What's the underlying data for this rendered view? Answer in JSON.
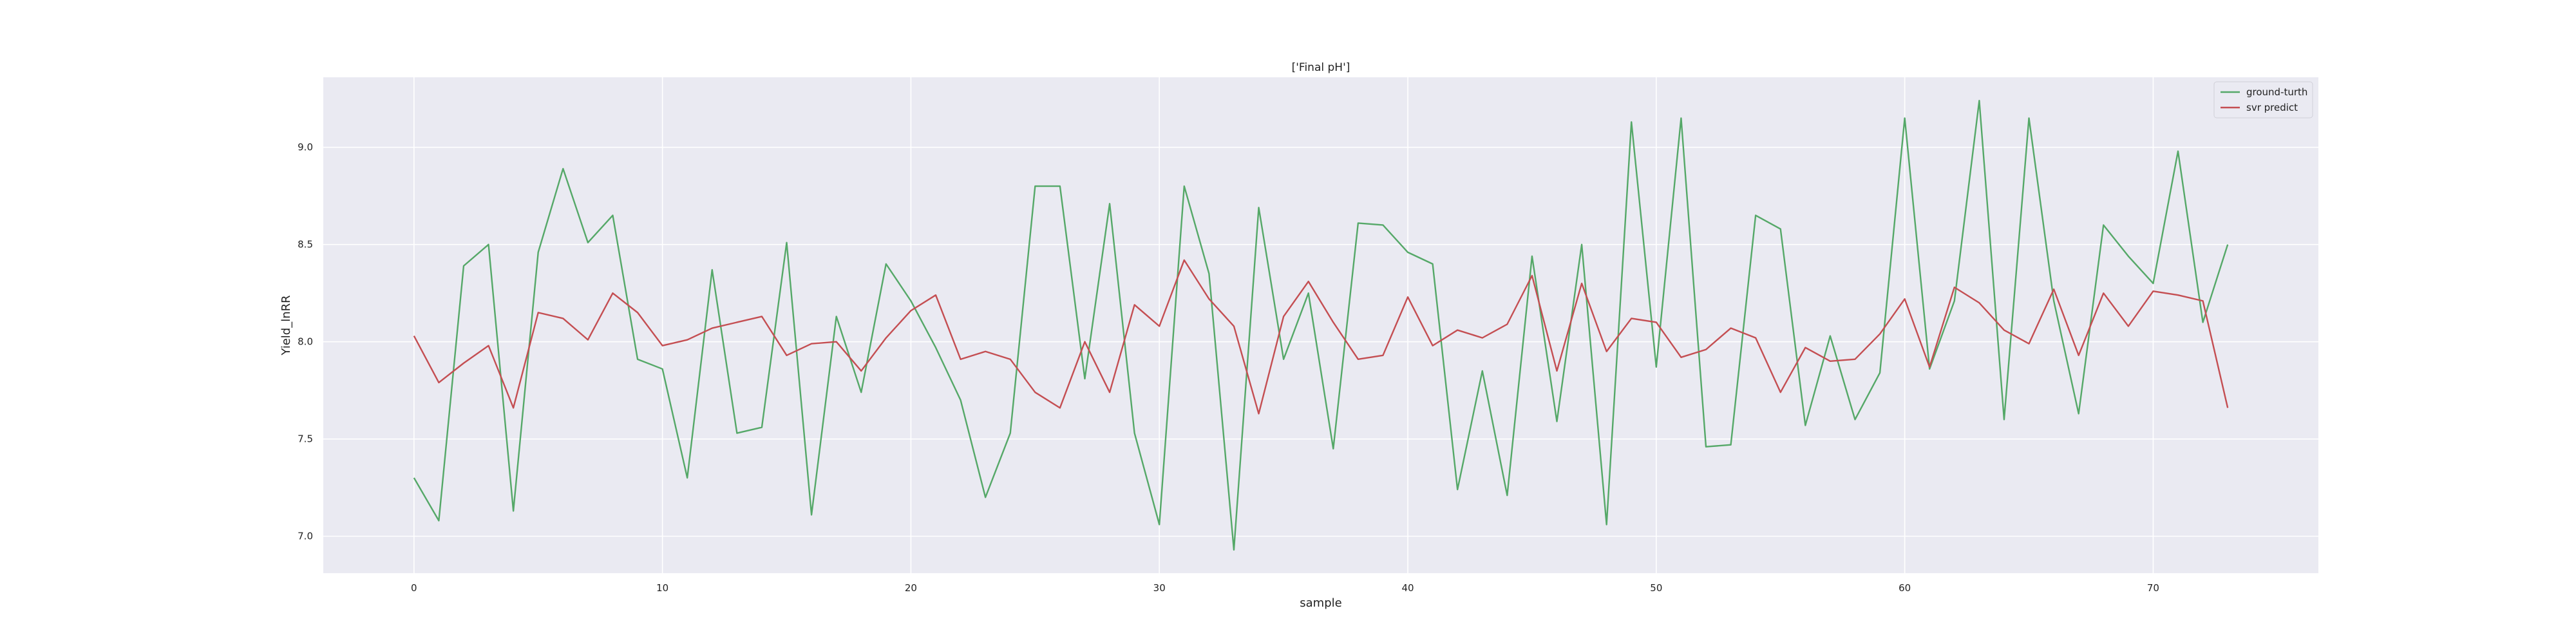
{
  "chart_data": {
    "type": "line",
    "title": "['Final pH']",
    "xlabel": "sample",
    "ylabel": "Yield_lnRR",
    "xlim": [
      -3.65,
      76.65
    ],
    "ylim": [
      6.81,
      9.36
    ],
    "xticks": [
      0,
      10,
      20,
      30,
      40,
      50,
      60,
      70
    ],
    "yticks": [
      7.0,
      7.5,
      8.0,
      8.5,
      9.0
    ],
    "ytick_labels": [
      "7.0",
      "7.5",
      "8.0",
      "8.5",
      "9.0"
    ],
    "grid": true,
    "legend_position": "top-right",
    "x": [
      0,
      1,
      2,
      3,
      4,
      5,
      6,
      7,
      8,
      9,
      10,
      11,
      12,
      13,
      14,
      15,
      16,
      17,
      18,
      19,
      20,
      21,
      22,
      23,
      24,
      25,
      26,
      27,
      28,
      29,
      30,
      31,
      32,
      33,
      34,
      35,
      36,
      37,
      38,
      39,
      40,
      41,
      42,
      43,
      44,
      45,
      46,
      47,
      48,
      49,
      50,
      51,
      52,
      53,
      54,
      55,
      56,
      57,
      58,
      59,
      60,
      61,
      62,
      63,
      64,
      65,
      66,
      67,
      68,
      69,
      70,
      71,
      72,
      73
    ],
    "series": [
      {
        "name": "ground-turth",
        "color": "#55a868",
        "values": [
          7.3,
          7.08,
          8.39,
          8.5,
          7.13,
          8.46,
          8.89,
          8.51,
          8.65,
          7.91,
          7.86,
          7.3,
          8.37,
          7.53,
          7.56,
          8.51,
          7.11,
          8.13,
          7.74,
          8.4,
          8.21,
          7.97,
          7.7,
          7.2,
          7.53,
          8.8,
          8.8,
          7.81,
          8.71,
          7.53,
          7.06,
          8.8,
          8.35,
          6.93,
          8.69,
          7.91,
          8.25,
          7.45,
          8.61,
          8.6,
          8.46,
          8.4,
          7.24,
          7.85,
          7.21,
          8.44,
          7.59,
          8.5,
          7.06,
          9.13,
          7.87,
          9.15,
          7.46,
          7.47,
          8.65,
          8.58,
          7.57,
          8.03,
          7.6,
          7.84,
          9.15,
          7.86,
          8.21,
          9.24,
          7.6,
          9.15,
          8.21,
          7.63,
          8.6,
          8.44,
          8.3,
          8.98,
          8.1,
          8.5
        ]
      },
      {
        "name": "svr predict",
        "color": "#c44e52",
        "values": [
          8.03,
          7.79,
          7.89,
          7.98,
          7.66,
          8.15,
          8.12,
          8.01,
          8.25,
          8.15,
          7.98,
          8.01,
          8.07,
          8.1,
          8.13,
          7.93,
          7.99,
          8.0,
          7.85,
          8.02,
          8.16,
          8.24,
          7.91,
          7.95,
          7.91,
          7.74,
          7.66,
          8.0,
          7.74,
          8.19,
          8.08,
          8.42,
          8.22,
          8.08,
          7.63,
          8.13,
          8.31,
          8.1,
          7.91,
          7.93,
          8.23,
          7.98,
          8.06,
          8.02,
          8.09,
          8.34,
          7.85,
          8.3,
          7.95,
          8.12,
          8.1,
          7.92,
          7.96,
          8.07,
          8.02,
          7.74,
          7.97,
          7.9,
          7.91,
          8.04,
          8.22,
          7.87,
          8.28,
          8.2,
          8.06,
          7.99,
          8.27,
          7.93,
          8.25,
          8.08,
          8.26,
          8.24,
          8.21,
          7.66
        ]
      }
    ]
  },
  "colors": {
    "plot_background": "#eaeaf2",
    "grid": "#ffffff"
  }
}
